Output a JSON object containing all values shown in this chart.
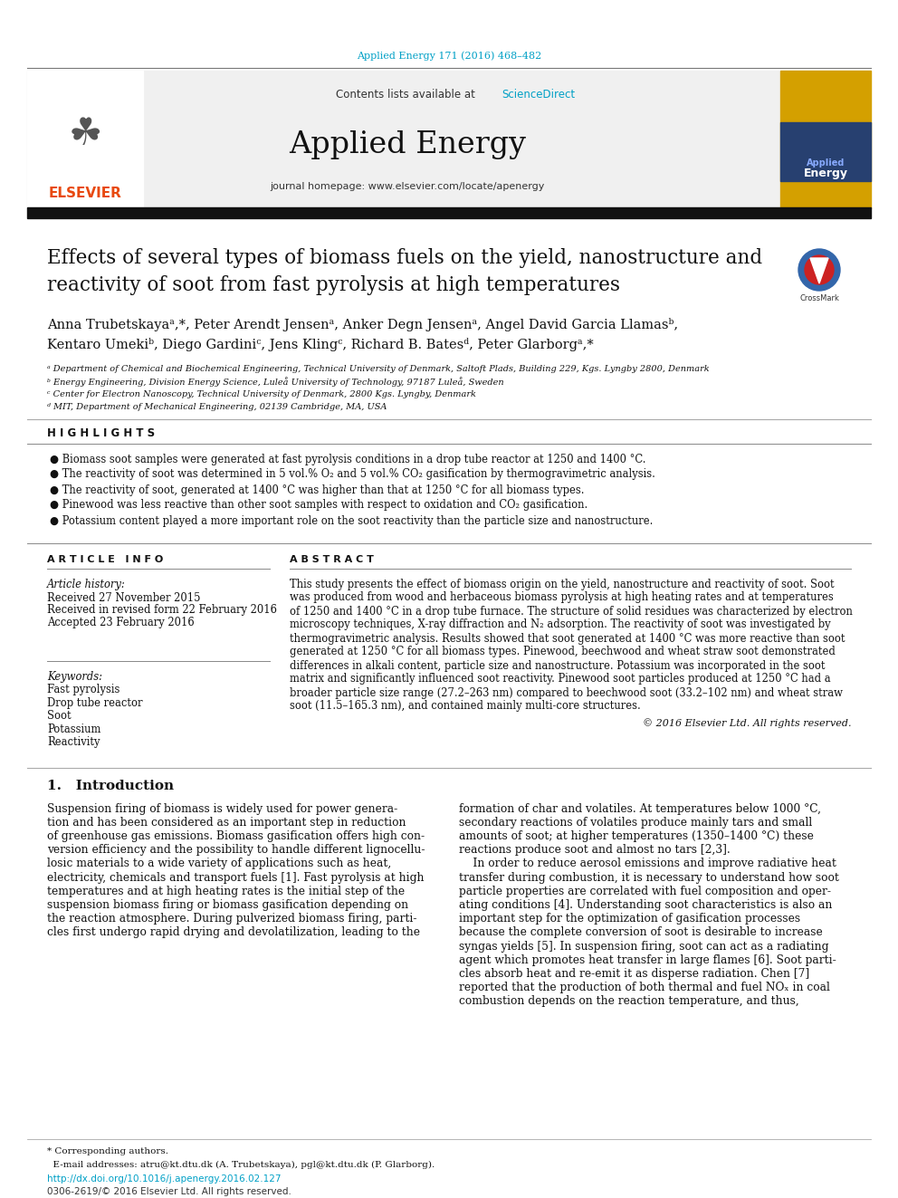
{
  "page_citation": "Applied Energy 171 (2016) 468–482",
  "journal_header_text": "Contents lists available at",
  "sciencedirect_text": "ScienceDirect",
  "journal_name": "Applied Energy",
  "journal_homepage": "journal homepage: www.elsevier.com/locate/apenergy",
  "highlights_title": "H I G H L I G H T S",
  "highlights": [
    "Biomass soot samples were generated at fast pyrolysis conditions in a drop tube reactor at 1250 and 1400 °C.",
    "The reactivity of soot was determined in 5 vol.% O₂ and 5 vol.% CO₂ gasification by thermogravimetric analysis.",
    "The reactivity of soot, generated at 1400 °C was higher than that at 1250 °C for all biomass types.",
    "Pinewood was less reactive than other soot samples with respect to oxidation and CO₂ gasification.",
    "Potassium content played a more important role on the soot reactivity than the particle size and nanostructure."
  ],
  "article_info_title": "A R T I C L E   I N F O",
  "abstract_title": "A B S T R A C T",
  "article_history_label": "Article history:",
  "received": "Received 27 November 2015",
  "revised": "Received in revised form 22 February 2016",
  "accepted": "Accepted 23 February 2016",
  "keywords_label": "Keywords:",
  "keywords": [
    "Fast pyrolysis",
    "Drop tube reactor",
    "Soot",
    "Potassium",
    "Reactivity"
  ],
  "abstract_lines": [
    "This study presents the effect of biomass origin on the yield, nanostructure and reactivity of soot. Soot",
    "was produced from wood and herbaceous biomass pyrolysis at high heating rates and at temperatures",
    "of 1250 and 1400 °C in a drop tube furnace. The structure of solid residues was characterized by electron",
    "microscopy techniques, X-ray diffraction and N₂ adsorption. The reactivity of soot was investigated by",
    "thermogravimetric analysis. Results showed that soot generated at 1400 °C was more reactive than soot",
    "generated at 1250 °C for all biomass types. Pinewood, beechwood and wheat straw soot demonstrated",
    "differences in alkali content, particle size and nanostructure. Potassium was incorporated in the soot",
    "matrix and significantly influenced soot reactivity. Pinewood soot particles produced at 1250 °C had a",
    "broader particle size range (27.2–263 nm) compared to beechwood soot (33.2–102 nm) and wheat straw",
    "soot (11.5–165.3 nm), and contained mainly multi-core structures."
  ],
  "copyright": "© 2016 Elsevier Ltd. All rights reserved.",
  "intro_title": "1.   Introduction",
  "intro_col1_lines": [
    "Suspension firing of biomass is widely used for power genera-",
    "tion and has been considered as an important step in reduction",
    "of greenhouse gas emissions. Biomass gasification offers high con-",
    "version efficiency and the possibility to handle different lignocellu-",
    "losic materials to a wide variety of applications such as heat,",
    "electricity, chemicals and transport fuels [1]. Fast pyrolysis at high",
    "temperatures and at high heating rates is the initial step of the",
    "suspension biomass firing or biomass gasification depending on",
    "the reaction atmosphere. During pulverized biomass firing, parti-",
    "cles first undergo rapid drying and devolatilization, leading to the"
  ],
  "intro_col2_lines": [
    "formation of char and volatiles. At temperatures below 1000 °C,",
    "secondary reactions of volatiles produce mainly tars and small",
    "amounts of soot; at higher temperatures (1350–1400 °C) these",
    "reactions produce soot and almost no tars [2,3].",
    "    In order to reduce aerosol emissions and improve radiative heat",
    "transfer during combustion, it is necessary to understand how soot",
    "particle properties are correlated with fuel composition and oper-",
    "ating conditions [4]. Understanding soot characteristics is also an",
    "important step for the optimization of gasification processes",
    "because the complete conversion of soot is desirable to increase",
    "syngas yields [5]. In suspension firing, soot can act as a radiating",
    "agent which promotes heat transfer in large flames [6]. Soot parti-",
    "cles absorb heat and re-emit it as disperse radiation. Chen [7]",
    "reported that the production of both thermal and fuel NOₓ in coal",
    "combustion depends on the reaction temperature, and thus,"
  ],
  "affil_a": "ᵃ Department of Chemical and Biochemical Engineering, Technical University of Denmark, Saltoft Plads, Building 229, Kgs. Lyngby 2800, Denmark",
  "affil_b": "ᵇ Energy Engineering, Division Energy Science, Luleå University of Technology, 97187 Luleå, Sweden",
  "affil_c": "ᶜ Center for Electron Nanoscopy, Technical University of Denmark, 2800 Kgs. Lyngby, Denmark",
  "affil_d": "ᵈ MIT, Department of Mechanical Engineering, 02139 Cambridge, MA, USA",
  "authors_line1": "Anna Trubetskayaᵃ,*, Peter Arendt Jensenᵃ, Anker Degn Jensenᵃ, Angel David Garcia Llamasᵇ,",
  "authors_line2": "Kentaro Umekiᵇ, Diego Gardiniᶜ, Jens Klingᶜ, Richard B. Batesᵈ, Peter Glarborgᵃ,*",
  "title_line1": "Effects of several types of biomass fuels on the yield, nanostructure and",
  "title_line2": "reactivity of soot from fast pyrolysis at high temperatures",
  "corresponding": "* Corresponding authors.",
  "email_line": "  E-mail addresses: atru@kt.dtu.dk (A. Trubetskaya), pgl@kt.dtu.dk (P. Glarborg).",
  "doi": "http://dx.doi.org/10.1016/j.apenergy.2016.02.127",
  "issn": "0306-2619/© 2016 Elsevier Ltd. All rights reserved.",
  "bg_color": "#ffffff",
  "link_color": "#00a0c6",
  "elsevier_color": "#e8490f",
  "text_color": "#111111"
}
